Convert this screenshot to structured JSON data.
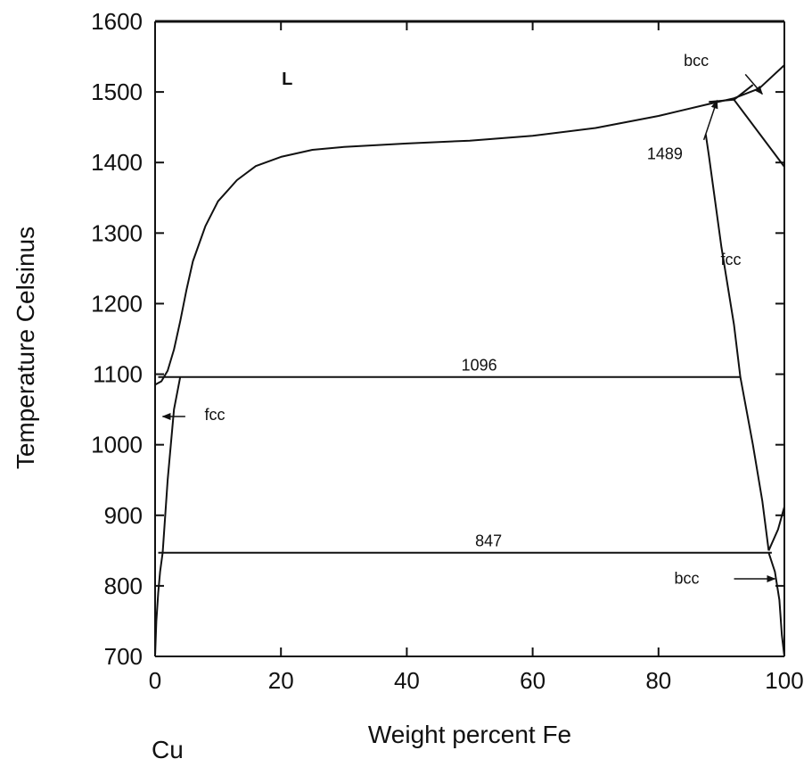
{
  "chart_data": {
    "type": "line",
    "xlabel": "Weight percent Fe",
    "ylabel": "Temperature Celsinus",
    "corner_label": "Cu",
    "xlim": [
      0,
      100
    ],
    "ylim": [
      700,
      1600
    ],
    "x_ticks": [
      "0",
      "20",
      "40",
      "60",
      "80",
      "100"
    ],
    "y_ticks": [
      "700",
      "800",
      "900",
      "1000",
      "1100",
      "1200",
      "1300",
      "1400",
      "1500",
      "1600"
    ],
    "grid": false,
    "series": [
      {
        "role": "liquidus",
        "points": [
          [
            0,
            1085
          ],
          [
            1,
            1090
          ],
          [
            2,
            1105
          ],
          [
            3,
            1135
          ],
          [
            4,
            1175
          ],
          [
            5,
            1220
          ],
          [
            6,
            1260
          ],
          [
            8,
            1310
          ],
          [
            10,
            1345
          ],
          [
            13,
            1375
          ],
          [
            16,
            1395
          ],
          [
            20,
            1408
          ],
          [
            25,
            1418
          ],
          [
            30,
            1422
          ],
          [
            40,
            1427
          ],
          [
            50,
            1431
          ],
          [
            60,
            1438
          ],
          [
            70,
            1449
          ],
          [
            80,
            1466
          ],
          [
            88,
            1483
          ],
          [
            92,
            1491
          ],
          [
            96,
            1505
          ],
          [
            100,
            1538
          ]
        ]
      },
      {
        "role": "peritectic-solidus-upper",
        "points": [
          [
            88,
            1486
          ],
          [
            92,
            1489
          ]
        ]
      },
      {
        "role": "bcc-liquidus-branch",
        "points": [
          [
            92,
            1489
          ],
          [
            95,
            1510
          ]
        ]
      },
      {
        "role": "bcc-solvus-high",
        "points": [
          [
            92,
            1489
          ],
          [
            100,
            1394
          ]
        ]
      },
      {
        "role": "fcc-solvus-iron-rich",
        "points": [
          [
            87.5,
            1440
          ],
          [
            88,
            1410
          ],
          [
            90,
            1280
          ],
          [
            92,
            1170
          ],
          [
            93,
            1096
          ],
          [
            95,
            1000
          ],
          [
            96.5,
            920
          ],
          [
            97.5,
            850
          ]
        ]
      },
      {
        "role": "fcc-alpha-boundary",
        "points": [
          [
            97.5,
            850
          ],
          [
            99,
            880
          ],
          [
            100,
            912
          ]
        ]
      },
      {
        "role": "bcc-solvus-low",
        "points": [
          [
            97.5,
            847
          ],
          [
            98.5,
            820
          ],
          [
            99.2,
            780
          ],
          [
            99.6,
            730
          ],
          [
            100,
            700
          ]
        ]
      },
      {
        "role": "cu-fcc-solvus",
        "points": [
          [
            0,
            700
          ],
          [
            0.2,
            750
          ],
          [
            0.5,
            790
          ],
          [
            0.8,
            820
          ],
          [
            1.2,
            847
          ],
          [
            2,
            950
          ],
          [
            3,
            1050
          ],
          [
            4,
            1096
          ]
        ]
      },
      {
        "role": "eutectoid-isotherm",
        "points": [
          [
            0.5,
            1096
          ],
          [
            93,
            1096
          ]
        ]
      },
      {
        "role": "monotectoid-isotherm",
        "points": [
          [
            0.5,
            847
          ],
          [
            98,
            847
          ]
        ]
      },
      {
        "role": "top-border",
        "points": [
          [
            0,
            1600
          ],
          [
            100,
            1600
          ]
        ]
      }
    ],
    "annotations": [
      {
        "text": "L",
        "x": 21,
        "y": 1510
      },
      {
        "text": "1096",
        "x": 51.5,
        "y": 1105
      },
      {
        "text": "847",
        "x": 53,
        "y": 856
      },
      {
        "text": "1489",
        "x": 81,
        "y": 1405
      },
      {
        "text": "fcc",
        "x": 91.5,
        "y": 1255
      },
      {
        "text": "bcc",
        "x": 86,
        "y": 1537
      },
      {
        "text": "fcc",
        "x": 9.5,
        "y": 1035
      },
      {
        "text": "bcc",
        "x": 84.5,
        "y": 803
      }
    ],
    "arrows": [
      {
        "from": [
          4.8,
          1040
        ],
        "to": [
          1.2,
          1040
        ]
      },
      {
        "from": [
          93.8,
          1525
        ],
        "to": [
          96.5,
          1497
        ]
      },
      {
        "from": [
          87.2,
          1432
        ],
        "to": [
          89.3,
          1488
        ]
      },
      {
        "from": [
          92,
          810
        ],
        "to": [
          98.5,
          810
        ]
      }
    ]
  }
}
